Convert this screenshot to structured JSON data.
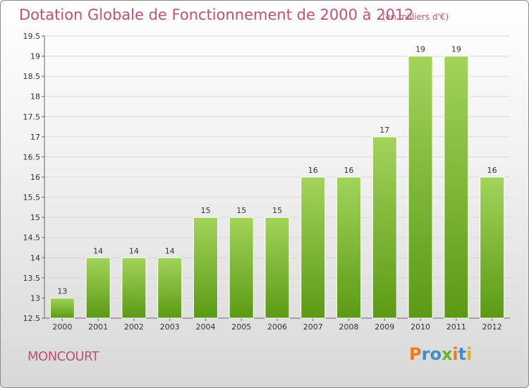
{
  "header": {
    "title": "Dotation Globale de Fonctionnement de 2000 à 2012",
    "unit": "(en milliers d'€)"
  },
  "commune": "MONCOURT",
  "logo": {
    "letters": [
      "P",
      "r",
      "o",
      "x",
      "i",
      "t",
      "i"
    ],
    "colors": [
      "#f07a1a",
      "#3b8fd0",
      "#3b8fd0",
      "#6ab42a",
      "#f07a1a",
      "#3b8fd0",
      "#e0b020"
    ]
  },
  "chart_data": {
    "type": "bar",
    "title": "Dotation Globale de Fonctionnement de 2000 à 2012",
    "subtitle": "(en milliers d'€)",
    "xlabel": "",
    "ylabel": "",
    "categories": [
      "2000",
      "2001",
      "2002",
      "2003",
      "2004",
      "2005",
      "2006",
      "2007",
      "2008",
      "2009",
      "2010",
      "2011",
      "2012"
    ],
    "values": [
      13,
      14,
      14,
      14,
      15,
      15,
      15,
      16,
      16,
      17,
      19,
      19,
      16
    ],
    "data_labels": [
      "13",
      "14",
      "14",
      "14",
      "15",
      "15",
      "15",
      "16",
      "16",
      "17",
      "19",
      "19",
      "16"
    ],
    "ylim": [
      12.5,
      19.5
    ],
    "yticks": [
      12.5,
      13,
      13.5,
      14,
      14.5,
      15,
      15.5,
      16,
      16.5,
      17,
      17.5,
      18,
      18.5,
      19,
      19.5
    ],
    "ytick_labels": [
      "12.5",
      "13",
      "13.5",
      "14",
      "14.5",
      "15",
      "15.5",
      "16",
      "16.5",
      "17",
      "17.5",
      "18",
      "18.5",
      "19",
      "19.5"
    ],
    "grid": true,
    "bar_color": "#7dc030"
  }
}
